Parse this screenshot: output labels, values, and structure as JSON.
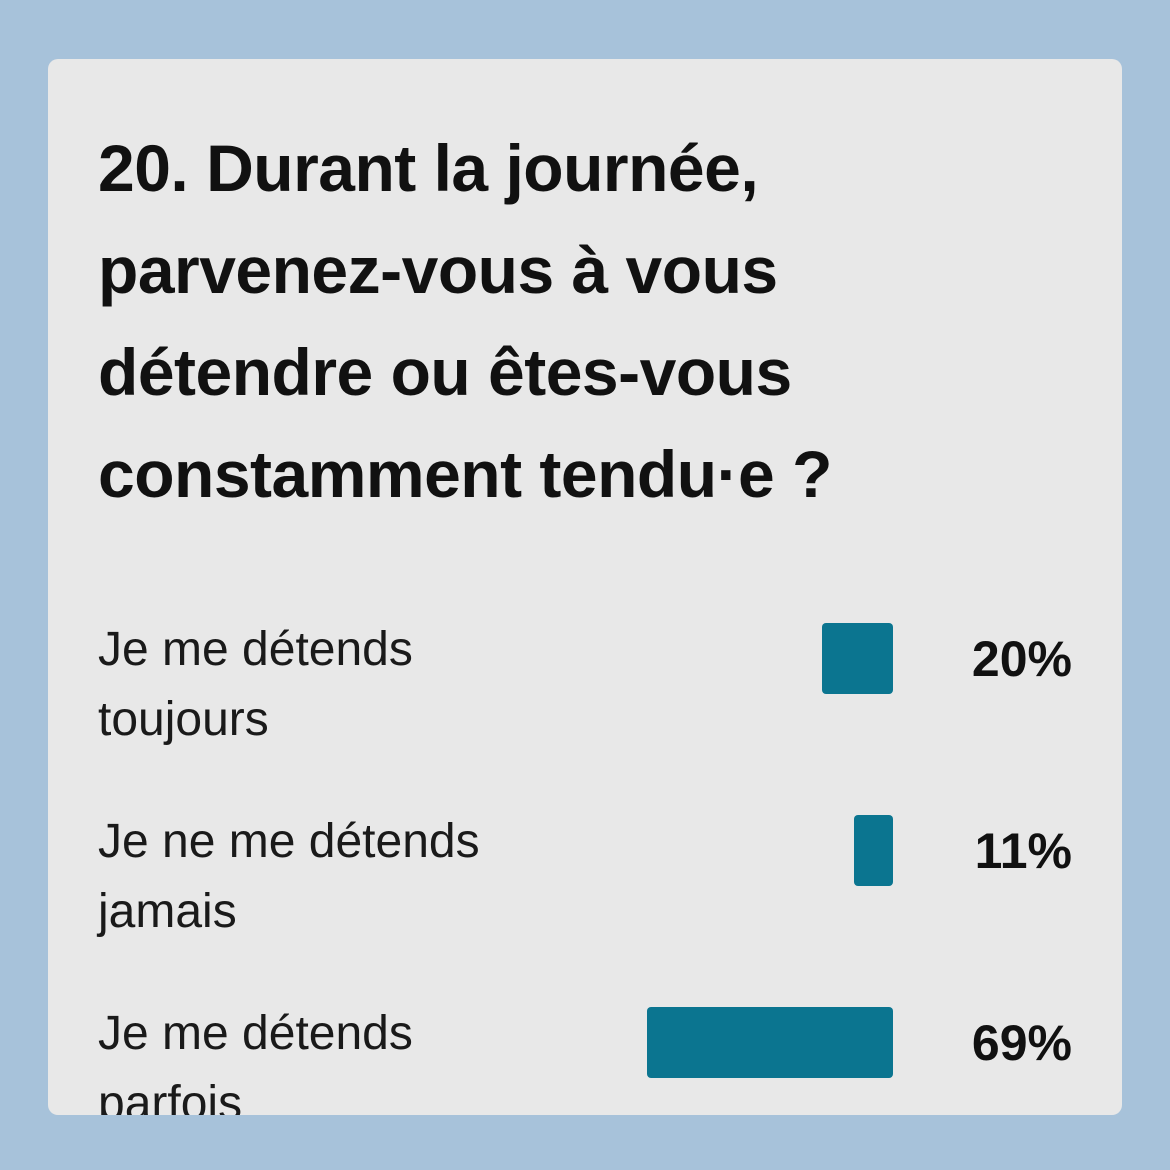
{
  "question": "20. Durant la journée, parvenez-vous à vous détendre ou êtes-vous constamment tendu·e ?",
  "colors": {
    "background": "#a7c2da",
    "card": "#e8e8e8",
    "bar": "#0b7590"
  },
  "chart_data": {
    "type": "bar",
    "orientation": "horizontal",
    "title": "20. Durant la journée, parvenez-vous à vous détendre ou êtes-vous constamment tendu·e ?",
    "categories": [
      "Je me détends toujours",
      "Je ne me détends jamais",
      "Je me détends parfois"
    ],
    "values": [
      20,
      11,
      69
    ],
    "value_labels": [
      "20%",
      "11%",
      "69%"
    ],
    "unit": "%",
    "xlim": [
      0,
      69
    ],
    "grid": false,
    "legend": "none"
  }
}
